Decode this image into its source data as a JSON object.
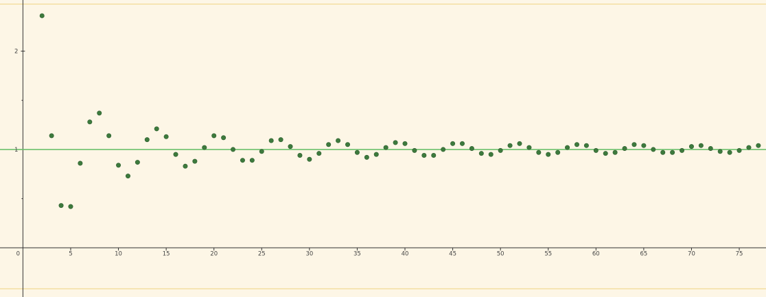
{
  "colors": {
    "background": "#fdf6e6",
    "band_border": "#f3dea0",
    "axis": "#333333",
    "reference_line": "#6cc06c",
    "point": "#3d7a3d"
  },
  "chart_data": {
    "type": "scatter",
    "title": "",
    "xlabel": "",
    "ylabel": "",
    "xlim": [
      -2.4,
      77.8
    ],
    "ylim": [
      -0.5,
      2.52
    ],
    "grid": false,
    "x_ticks": [
      0,
      5,
      10,
      15,
      20,
      25,
      30,
      35,
      40,
      45,
      50,
      55,
      60,
      65,
      70,
      75
    ],
    "x_tick_labels": [
      "0",
      "5",
      "10",
      "15",
      "20",
      "25",
      "30",
      "35",
      "40",
      "45",
      "50",
      "55",
      "60",
      "65",
      "70",
      "75"
    ],
    "y_ticks": [
      1,
      2
    ],
    "y_tick_labels": [
      "1",
      "2"
    ],
    "y_minor_ticks": [
      0.5,
      1.5
    ],
    "reference_line": {
      "y": 1
    },
    "x": [
      2,
      3,
      4,
      5,
      6,
      7,
      8,
      9,
      10,
      11,
      12,
      13,
      14,
      15,
      16,
      17,
      18,
      19,
      20,
      21,
      22,
      23,
      24,
      25,
      26,
      27,
      28,
      29,
      30,
      31,
      32,
      33,
      34,
      35,
      36,
      37,
      38,
      39,
      40,
      41,
      42,
      43,
      44,
      45,
      46,
      47,
      48,
      49,
      50,
      51,
      52,
      53,
      54,
      55,
      56,
      57,
      58,
      59,
      60,
      61,
      62,
      63,
      64,
      65,
      66,
      67,
      68,
      69,
      70,
      71,
      72,
      73,
      74,
      75,
      76,
      77
    ],
    "y": [
      2.36,
      1.14,
      0.43,
      0.42,
      0.86,
      1.28,
      1.37,
      1.14,
      0.84,
      0.73,
      0.87,
      1.1,
      1.21,
      1.13,
      0.95,
      0.83,
      0.88,
      1.02,
      1.14,
      1.12,
      1.0,
      0.89,
      0.89,
      0.98,
      1.09,
      1.1,
      1.03,
      0.94,
      0.9,
      0.96,
      1.05,
      1.09,
      1.05,
      0.97,
      0.92,
      0.95,
      1.02,
      1.07,
      1.06,
      0.99,
      0.94,
      0.94,
      1.0,
      1.06,
      1.06,
      1.01,
      0.96,
      0.95,
      0.99,
      1.04,
      1.06,
      1.02,
      0.97,
      0.95,
      0.97,
      1.02,
      1.05,
      1.04,
      0.99,
      0.96,
      0.97,
      1.01,
      1.05,
      1.04,
      1.0,
      0.97,
      0.97,
      0.99,
      1.03,
      1.04,
      1.01,
      0.98,
      0.97,
      0.99,
      1.02,
      1.04
    ]
  }
}
